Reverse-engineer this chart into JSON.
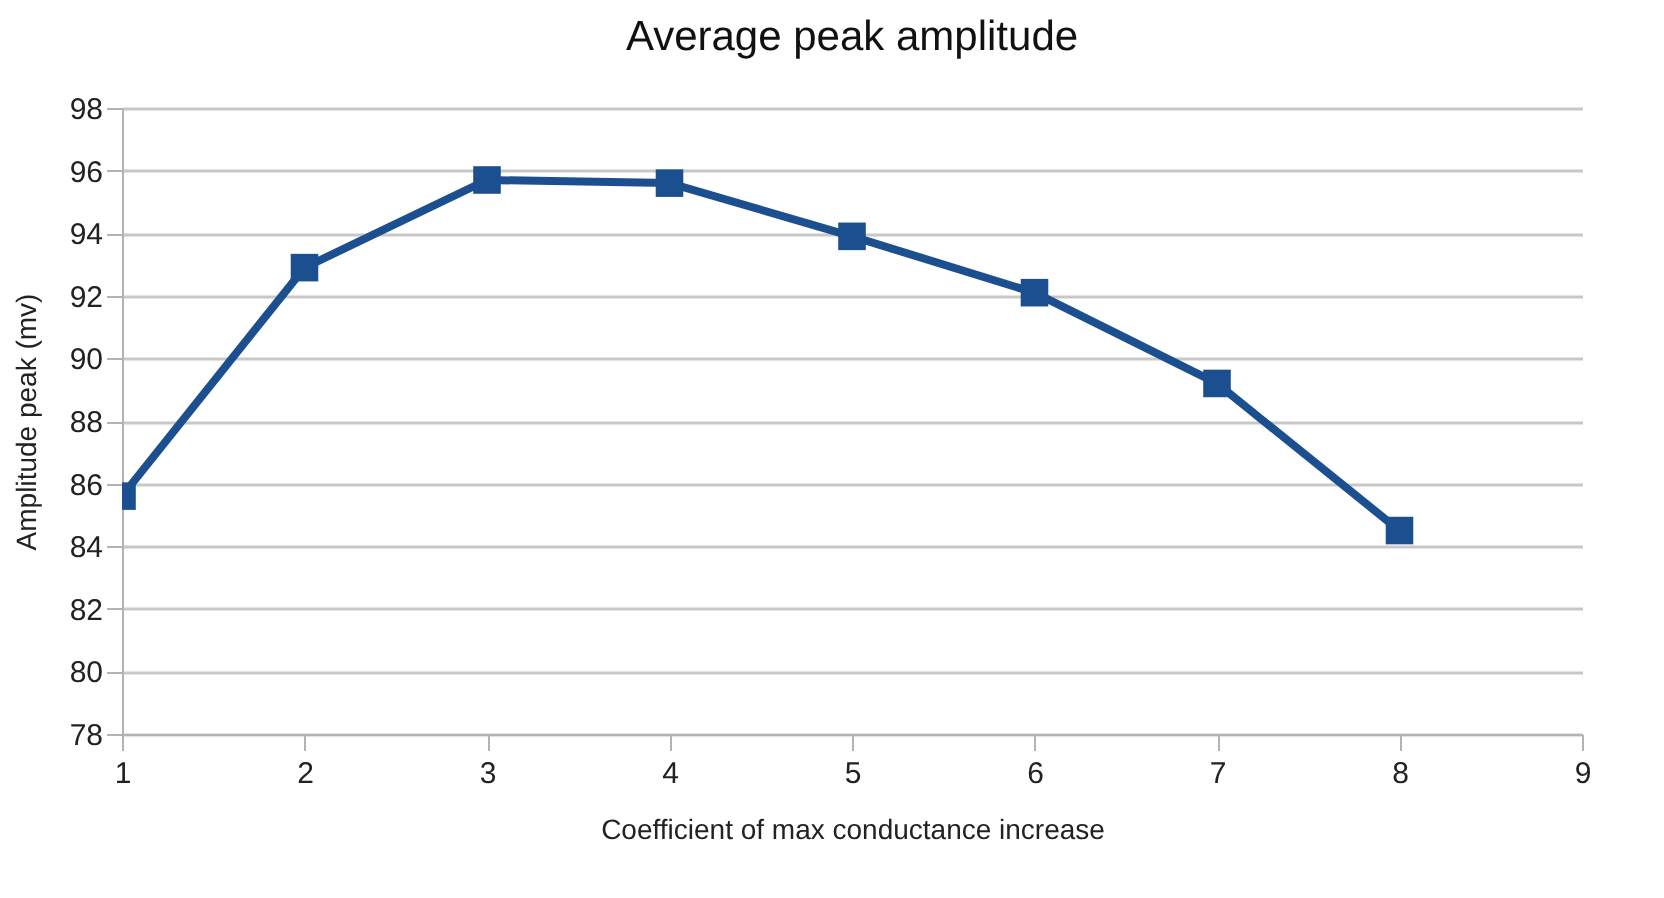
{
  "chart_data": {
    "type": "line",
    "title": "Average peak amplitude",
    "xlabel": "Coefficient of max conductance increase",
    "ylabel": "Amplitude peak (mv)",
    "x": [
      1,
      2,
      3,
      4,
      5,
      6,
      7,
      8
    ],
    "series": [
      {
        "color": "#1c4f8f",
        "values": [
          85.6,
          92.9,
          95.7,
          95.6,
          93.9,
          92.1,
          89.2,
          84.5
        ]
      }
    ],
    "xlim": [
      1,
      9
    ],
    "xticks": [
      1,
      2,
      3,
      4,
      5,
      6,
      7,
      8,
      9
    ],
    "ylim": [
      78,
      98
    ],
    "yticks": [
      78,
      80,
      82,
      84,
      86,
      88,
      90,
      92,
      94,
      96,
      98
    ],
    "grid": "y",
    "marker": "square",
    "line_style": "solid"
  }
}
